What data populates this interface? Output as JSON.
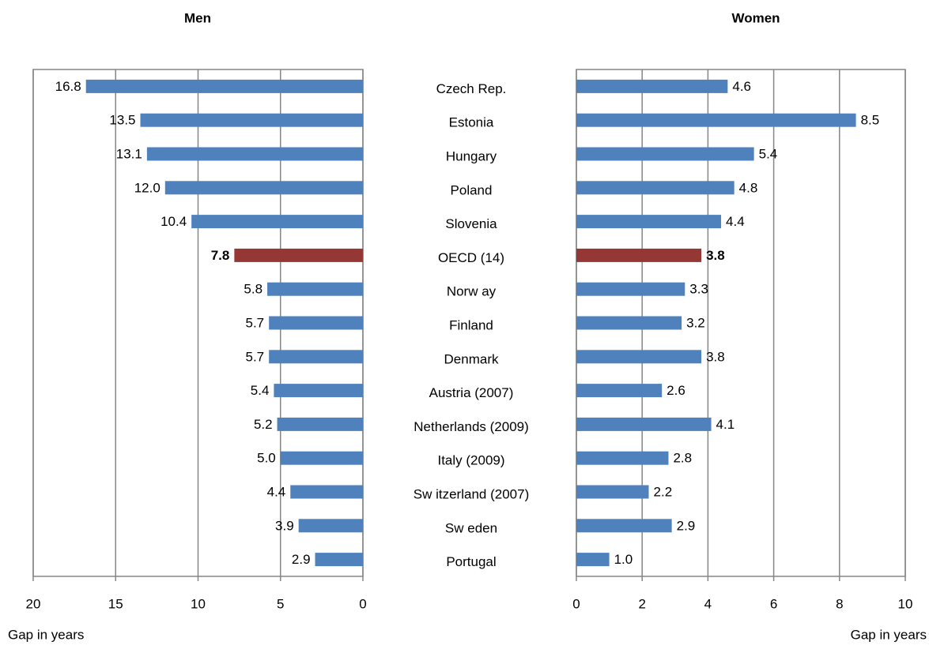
{
  "chart_data": [
    {
      "type": "bar",
      "orientation": "horizontal",
      "reversed": true,
      "title": "Men",
      "xlabel": "Gap in years",
      "categories": [
        "Czech Rep.",
        "Estonia",
        "Hungary",
        "Poland",
        "Slovenia",
        "OECD (14)",
        "Norw ay",
        "Finland",
        "Denmark",
        "Austria (2007)",
        "Netherlands (2009)",
        "Italy (2009)",
        "Sw itzerland (2007)",
        "Sw eden",
        "Portugal"
      ],
      "values": [
        16.8,
        13.5,
        13.1,
        12.0,
        10.4,
        7.8,
        5.8,
        5.7,
        5.7,
        5.4,
        5.2,
        5.0,
        4.4,
        3.9,
        2.9
      ],
      "value_labels": [
        "16.8",
        "13.5",
        "13.1",
        "12.0",
        "10.4",
        "7.8",
        "5.8",
        "5.7",
        "5.7",
        "5.4",
        "5.2",
        "5.0",
        "4.4",
        "3.9",
        "2.9"
      ],
      "color": "#4f81bd",
      "highlight": {
        "index": 5,
        "color": "#953735"
      },
      "xlim": [
        0,
        20
      ],
      "xticks": [
        0,
        5,
        10,
        15,
        20
      ],
      "grid": true
    },
    {
      "type": "bar",
      "orientation": "horizontal",
      "reversed": false,
      "title": "Women",
      "xlabel": "Gap in years",
      "values": [
        4.6,
        8.5,
        5.4,
        4.8,
        4.4,
        3.8,
        3.3,
        3.2,
        3.8,
        2.6,
        4.1,
        2.8,
        2.2,
        2.9,
        1.0
      ],
      "value_labels": [
        "4.6",
        "8.5",
        "5.4",
        "4.8",
        "4.4",
        "3.8",
        "3.3",
        "3.2",
        "3.8",
        "2.6",
        "4.1",
        "2.8",
        "2.2",
        "2.9",
        "1.0"
      ],
      "color": "#4f81bd",
      "highlight": {
        "index": 5,
        "color": "#953735"
      },
      "xlim": [
        0,
        10
      ],
      "xticks": [
        0,
        2,
        4,
        6,
        8,
        10
      ],
      "grid": true
    }
  ]
}
